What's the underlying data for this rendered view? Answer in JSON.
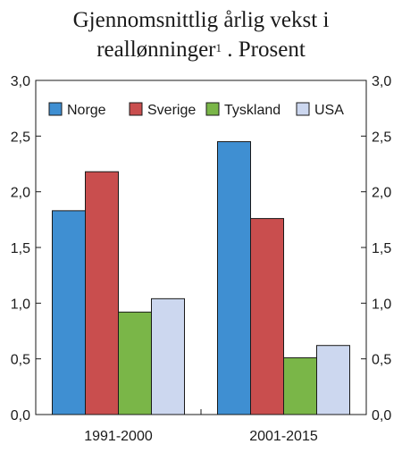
{
  "chart_data": {
    "type": "bar",
    "title_line1": "Gjennomsnittlig årlig vekst i",
    "title_line2": "reallønninger",
    "title_superscript": "1",
    "title_suffix": " . Prosent",
    "categories": [
      "1991-2000",
      "2001-2015"
    ],
    "series": [
      {
        "name": "Norge",
        "color": "#3f8fd2",
        "values": [
          1.83,
          2.45
        ]
      },
      {
        "name": "Sverige",
        "color": "#c94e4e",
        "values": [
          2.18,
          1.76
        ]
      },
      {
        "name": "Tyskland",
        "color": "#7ab648",
        "values": [
          0.92,
          0.51
        ]
      },
      {
        "name": "USA",
        "color": "#ccd7ef",
        "values": [
          1.04,
          0.62
        ]
      }
    ],
    "ylim": [
      0,
      3.0
    ],
    "yticks": [
      "0,0",
      "0,5",
      "1,0",
      "1,5",
      "2,0",
      "2,5",
      "3,0"
    ],
    "ytick_values": [
      0,
      0.5,
      1.0,
      1.5,
      2.0,
      2.5,
      3.0
    ],
    "grid": false,
    "legend_position": "top",
    "xlabel": "",
    "ylabel": ""
  }
}
